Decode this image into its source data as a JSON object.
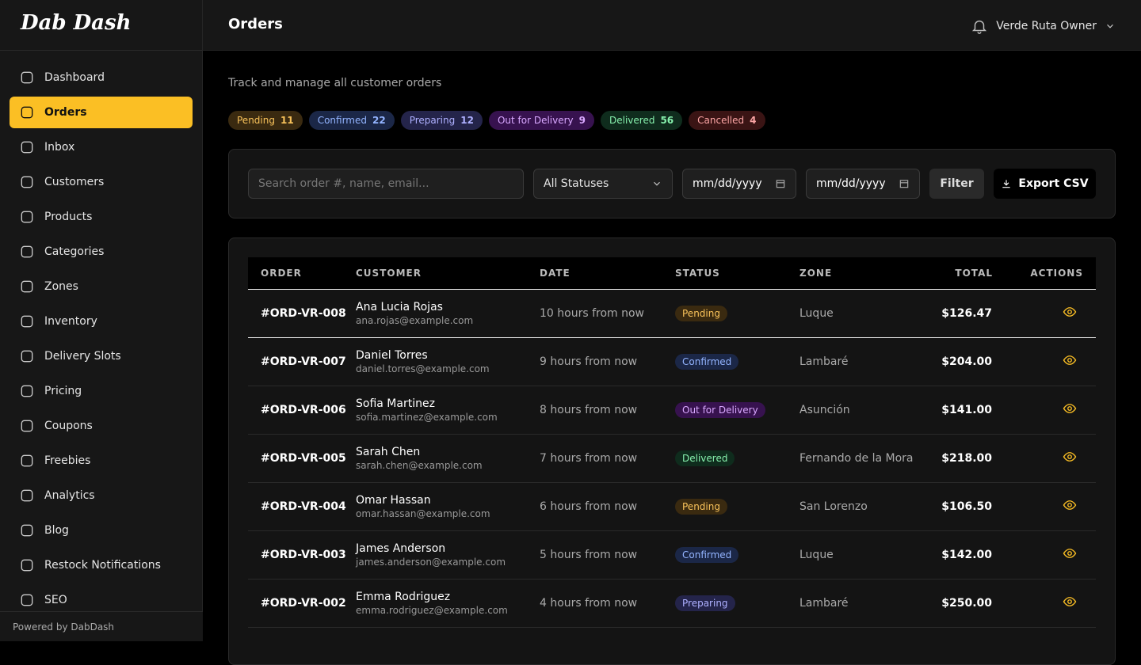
{
  "sidebar": {
    "logo": "Dab Dash",
    "nav": [
      "Dashboard",
      "Orders",
      "Inbox",
      "Customers",
      "Products",
      "Categories",
      "Zones",
      "Inventory",
      "Delivery Slots",
      "Pricing",
      "Coupons",
      "Freebies",
      "Analytics",
      "Blog",
      "Restock Notifications",
      "SEO"
    ],
    "active": 1,
    "footer": "Powered by DabDash"
  },
  "header": {
    "title": "Orders",
    "user": "Verde Ruta Owner"
  },
  "subtitle": "Track and manage all customer orders",
  "status_counts": [
    {
      "label": "Pending",
      "count": 11
    },
    {
      "label": "Confirmed",
      "count": 22
    },
    {
      "label": "Preparing",
      "count": 12
    },
    {
      "label": "Out for Delivery",
      "count": 9
    },
    {
      "label": "Delivered",
      "count": 56
    },
    {
      "label": "Cancelled",
      "count": 4
    }
  ],
  "filters": {
    "search_placeholder": "Search order #, name, email...",
    "status": "All Statuses",
    "date_from": "mm/dd/yyyy",
    "date_to": "mm/dd/yyyy",
    "filter_button": "Filter",
    "export_button": "Export CSV"
  },
  "table": {
    "columns": [
      "ORDER",
      "CUSTOMER",
      "DATE",
      "STATUS",
      "ZONE",
      "TOTAL",
      "ACTIONS"
    ],
    "rows": [
      {
        "order": "#ORD-VR-008",
        "name": "Ana Lucia Rojas",
        "email": "ana.rojas@example.com",
        "date": "10 hours from now",
        "status": "Pending",
        "zone": "Luque",
        "total": "$126.47"
      },
      {
        "order": "#ORD-VR-007",
        "name": "Daniel Torres",
        "email": "daniel.torres@example.com",
        "date": "9 hours from now",
        "status": "Confirmed",
        "zone": "Lambaré",
        "total": "$204.00"
      },
      {
        "order": "#ORD-VR-006",
        "name": "Sofia Martinez",
        "email": "sofia.martinez@example.com",
        "date": "8 hours from now",
        "status": "Out for Delivery",
        "zone": "Asunción",
        "total": "$141.00"
      },
      {
        "order": "#ORD-VR-005",
        "name": "Sarah Chen",
        "email": "sarah.chen@example.com",
        "date": "7 hours from now",
        "status": "Delivered",
        "zone": "Fernando de la Mora",
        "total": "$218.00"
      },
      {
        "order": "#ORD-VR-004",
        "name": "Omar Hassan",
        "email": "omar.hassan@example.com",
        "date": "6 hours from now",
        "status": "Pending",
        "zone": "San Lorenzo",
        "total": "$106.50"
      },
      {
        "order": "#ORD-VR-003",
        "name": "James Anderson",
        "email": "james.anderson@example.com",
        "date": "5 hours from now",
        "status": "Confirmed",
        "zone": "Luque",
        "total": "$142.00"
      },
      {
        "order": "#ORD-VR-002",
        "name": "Emma Rodriguez",
        "email": "emma.rodriguez@example.com",
        "date": "4 hours from now",
        "status": "Preparing",
        "zone": "Lambaré",
        "total": "$250.00"
      }
    ]
  }
}
